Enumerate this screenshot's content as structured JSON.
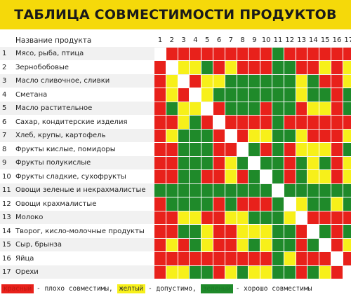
{
  "title": "ТАБЛИЦА СОВМЕСТИМОСТИ ПРОДУКТОВ",
  "header_label": "Название продукта",
  "colors": {
    "R": "#e8211b",
    "Y": "#f7f01a",
    "G": "#1f8a2a",
    "W": "#ffffff",
    "banner": "#f5d90a"
  },
  "columns": [
    "1",
    "2",
    "3",
    "4",
    "5",
    "6",
    "7",
    "8",
    "9",
    "10",
    "11",
    "12",
    "13",
    "14",
    "15",
    "16",
    "17"
  ],
  "rows": [
    {
      "num": "1",
      "label": "Мясо, рыба, птица",
      "cells": "WRRRRRRRRRGRRRRRR"
    },
    {
      "num": "2",
      "label": "Зернобобовые",
      "cells": "RWYYGRYRRRGGRRYRY"
    },
    {
      "num": "3",
      "label": "Масло сливочное, сливки",
      "cells": "RYWRYYGGGGGGYGRRY"
    },
    {
      "num": "4",
      "label": "Сметана",
      "cells": "RYRWYGGGGGGGYGGRG"
    },
    {
      "num": "5",
      "label": "Масло растительное",
      "cells": "RGYYWRGGGRGGRYYRG"
    },
    {
      "num": "6",
      "label": "Сахар, кондитерские изделия",
      "cells": "RRYGRWRRRRGRRRRRR"
    },
    {
      "num": "7",
      "label": "Хлеб, крупы, картофель",
      "cells": "RYGGGRWRYYGGYRRRY"
    },
    {
      "num": "8",
      "label": "Фрукты кислые, помидоры",
      "cells": "RRGGGRRWGRGRYYYRG"
    },
    {
      "num": "9",
      "label": "Фрукты полукислые",
      "cells": "RRGGGRYGWGGRGYGRY"
    },
    {
      "num": "10",
      "label": "Фрукты сладкие, сухофрукты",
      "cells": "RRGGRRYRGWGRGYYRY"
    },
    {
      "num": "11",
      "label": "Овощи зеленые и некрахмалистые",
      "cells": "GGGGGGGGGGWGGGGGG"
    },
    {
      "num": "12",
      "label": "Овощи крахмалистые",
      "cells": "RGGGGRGRRRGWYGGYG"
    },
    {
      "num": "13",
      "label": "Молоко",
      "cells": "RRYYRRYYGGGYWRRRR"
    },
    {
      "num": "14",
      "label": "Творог, кисло-молочные продукты",
      "cells": "RRGGYRRYYYGGRWGRG"
    },
    {
      "num": "15",
      "label": "Сыр, брынза",
      "cells": "RYRGYRRYGYGGRGWRY"
    },
    {
      "num": "16",
      "label": "Яйца",
      "cells": "RRRRRRRRRRGYRRRWR"
    },
    {
      "num": "17",
      "label": "Орехи",
      "cells": "RYYGGRYGYYGGRGYRW"
    }
  ],
  "legend": {
    "red_label": "красный",
    "red_text": "- плохо совместимы,",
    "yellow_label": "желтый",
    "yellow_text": "- допустимо,",
    "green_label": "зеленый",
    "green_text": "- хорошо совместимы"
  }
}
